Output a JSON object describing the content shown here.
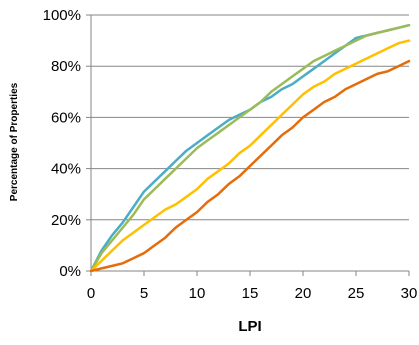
{
  "chart_data": {
    "type": "line",
    "title": "",
    "xlabel": "LPI",
    "ylabel": "Percentage of Properties",
    "xlim": [
      0,
      30
    ],
    "ylim": [
      0,
      100
    ],
    "x_ticks": [
      "0",
      "5",
      "10",
      "15",
      "20",
      "25",
      "30"
    ],
    "y_ticks": [
      "0%",
      "20%",
      "40%",
      "60%",
      "80%",
      "100%"
    ],
    "grid": "horizontal",
    "legend": "none",
    "series": [
      {
        "color": "#4BACC6",
        "x": [
          0,
          1,
          2,
          3,
          4,
          5,
          6,
          7,
          8,
          9,
          10,
          11,
          12,
          13,
          14,
          15,
          16,
          17,
          18,
          19,
          20,
          21,
          22,
          23,
          24,
          25,
          26,
          27,
          28,
          29,
          30
        ],
        "y": [
          0,
          8,
          14,
          19,
          25,
          31,
          35,
          39,
          43,
          47,
          50,
          53,
          56,
          59,
          61,
          63,
          66,
          68,
          71,
          73,
          76,
          79,
          82,
          85,
          88,
          91,
          92,
          93,
          94,
          95,
          96
        ]
      },
      {
        "color": "#9BBB59",
        "x": [
          0,
          1,
          2,
          3,
          4,
          5,
          6,
          7,
          8,
          9,
          10,
          11,
          12,
          13,
          14,
          15,
          16,
          17,
          18,
          19,
          20,
          21,
          22,
          23,
          24,
          25,
          26,
          27,
          28,
          29,
          30
        ],
        "y": [
          0,
          7,
          12,
          17,
          22,
          28,
          32,
          36,
          40,
          44,
          48,
          51,
          54,
          57,
          60,
          63,
          66,
          70,
          73,
          76,
          79,
          82,
          84,
          86,
          88,
          90,
          92,
          93,
          94,
          95,
          96
        ]
      },
      {
        "color": "#FFC000",
        "x": [
          0,
          1,
          2,
          3,
          4,
          5,
          6,
          7,
          8,
          9,
          10,
          11,
          12,
          13,
          14,
          15,
          16,
          17,
          18,
          19,
          20,
          21,
          22,
          23,
          24,
          25,
          26,
          27,
          28,
          29,
          30
        ],
        "y": [
          0,
          4,
          8,
          12,
          15,
          18,
          21,
          24,
          26,
          29,
          32,
          36,
          39,
          42,
          46,
          49,
          53,
          57,
          61,
          65,
          69,
          72,
          74,
          77,
          79,
          81,
          83,
          85,
          87,
          89,
          90
        ]
      },
      {
        "color": "#E46C0A",
        "x": [
          0,
          1,
          2,
          3,
          4,
          5,
          6,
          7,
          8,
          9,
          10,
          11,
          12,
          13,
          14,
          15,
          16,
          17,
          18,
          19,
          20,
          21,
          22,
          23,
          24,
          25,
          26,
          27,
          28,
          29,
          30
        ],
        "y": [
          0,
          1,
          2,
          3,
          5,
          7,
          10,
          13,
          17,
          20,
          23,
          27,
          30,
          34,
          37,
          41,
          45,
          49,
          53,
          56,
          60,
          63,
          66,
          68,
          71,
          73,
          75,
          77,
          78,
          80,
          82
        ]
      }
    ]
  }
}
